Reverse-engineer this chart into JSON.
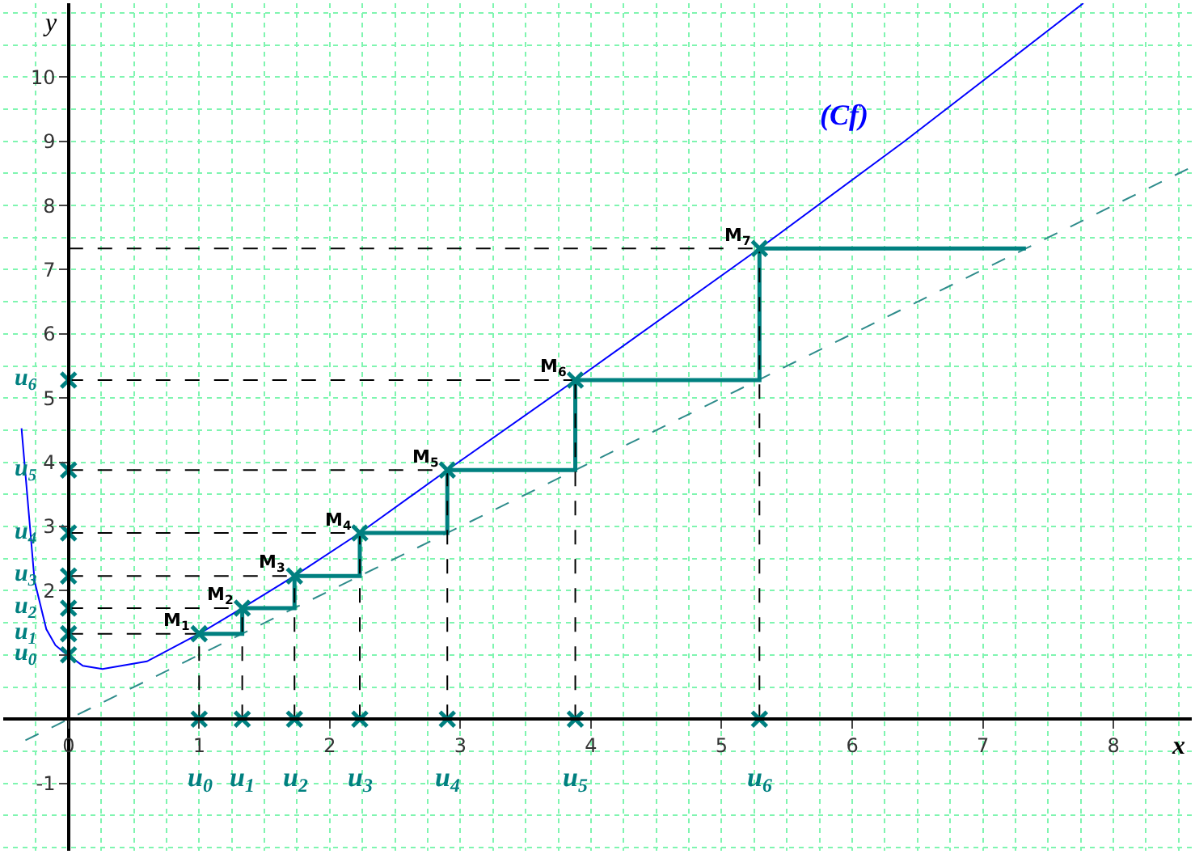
{
  "chart_data": {
    "type": "line",
    "xlabel": "x",
    "ylabel": "y",
    "xlim": [
      -0.5,
      8.6
    ],
    "ylim": [
      -2.05,
      11.15
    ],
    "xticks": [
      0,
      1,
      2,
      3,
      4,
      5,
      6,
      7,
      8
    ],
    "yticks": [
      -1,
      {
        "value": 1,
        "label": null
      },
      2,
      3,
      4,
      5,
      6,
      7,
      8,
      9,
      10
    ],
    "grid": true,
    "legend": false,
    "series": [
      {
        "name": "(Cf)",
        "color": "#0000ff",
        "line_style": "solid",
        "x": [
          -0.36,
          -0.32,
          -0.26,
          -0.17,
          -0.1,
          -0.04,
          0.11,
          0.26,
          0.6,
          1,
          1.33,
          1.73,
          2.23,
          2.9,
          3.88,
          5.29,
          6.4,
          7.77
        ],
        "values": [
          4.53,
          3.58,
          2.15,
          1.4,
          1.15,
          1.05,
          0.83,
          0.78,
          0.9,
          1.33,
          1.73,
          2.23,
          2.9,
          3.88,
          5.28,
          7.33,
          9.0,
          11.15
        ]
      },
      {
        "color": "#2e8b8b",
        "line_style": "dashed",
        "x": [
          -0.33,
          8.6
        ],
        "values": [
          -0.33,
          8.6
        ]
      },
      {
        "color": "#008080",
        "line_style": "solid",
        "x": [
          1,
          1.33,
          1.33,
          1.73,
          1.73,
          2.23,
          2.23,
          2.9,
          2.9,
          3.88,
          3.88,
          5.29,
          5.29,
          7.33
        ],
        "values": [
          1.33,
          1.33,
          1.73,
          1.73,
          2.23,
          2.23,
          2.9,
          2.9,
          3.88,
          3.88,
          5.28,
          5.28,
          7.33,
          7.33
        ]
      },
      {
        "color": "#000000",
        "line_style": "dashed",
        "x": [
          1,
          1,
          null,
          1.33,
          1.33,
          null,
          1.73,
          1.73,
          null,
          2.23,
          2.23,
          null,
          2.9,
          2.9,
          null,
          3.88,
          3.88,
          null,
          5.29,
          5.29,
          null,
          0,
          1,
          null,
          0,
          1.33,
          null,
          0,
          1.73,
          null,
          0,
          2.23,
          null,
          0,
          2.9,
          null,
          0,
          3.88,
          null,
          0,
          5.29
        ],
        "values": [
          0,
          1.33,
          null,
          0,
          1.73,
          null,
          0,
          2.23,
          null,
          0,
          2.9,
          null,
          0,
          3.88,
          null,
          0,
          5.28,
          null,
          0,
          7.33,
          null,
          1.33,
          1.33,
          null,
          1.73,
          1.73,
          null,
          2.23,
          2.23,
          null,
          2.9,
          2.9,
          null,
          3.88,
          3.88,
          null,
          5.28,
          5.28,
          null,
          7.33,
          7.33
        ]
      },
      {
        "type": "scatter",
        "marker": "cross",
        "color": "#008080",
        "x": [
          1,
          1.33,
          1.73,
          2.23,
          2.9,
          3.88,
          5.29,
          0,
          0,
          0,
          0,
          0,
          0,
          0,
          1,
          1.33,
          1.73,
          2.23,
          2.9,
          3.88,
          5.29
        ],
        "values": [
          0,
          0,
          0,
          0,
          0,
          0,
          0,
          1,
          1.33,
          1.73,
          2.23,
          2.9,
          3.88,
          5.28,
          1.33,
          1.73,
          2.23,
          2.9,
          3.88,
          5.28,
          7.33
        ]
      }
    ],
    "annotations": [
      {
        "text": "M$_{1}$",
        "x": 1,
        "y": 1.33
      },
      {
        "text": "M$_{2}$",
        "x": 1.33,
        "y": 1.73
      },
      {
        "text": "M$_{3}$",
        "x": 1.73,
        "y": 2.23
      },
      {
        "text": "M$_{4}$",
        "x": 2.23,
        "y": 2.9
      },
      {
        "text": "M$_{5}$",
        "x": 2.9,
        "y": 3.88
      },
      {
        "text": "M$_{6}$",
        "x": 3.88,
        "y": 5.28
      },
      {
        "text": "M$_{7}$",
        "x": 5.29,
        "y": 7.33
      },
      {
        "text": "u$_{0}$",
        "x": 1,
        "y": 0
      },
      {
        "text": "u$_{1}$",
        "x": 1.33,
        "y": 0
      },
      {
        "text": "u$_{2}$",
        "x": 1.73,
        "y": 0
      },
      {
        "text": "u$_{3}$",
        "x": 2.23,
        "y": 0
      },
      {
        "text": "u$_{4}$",
        "x": 2.9,
        "y": 0
      },
      {
        "text": "u$_{5}$",
        "x": 3.88,
        "y": 0
      },
      {
        "text": "u$_{6}$",
        "x": 5.29,
        "y": 0
      },
      {
        "text": "u$_{0}$",
        "x": 0,
        "y": 1
      },
      {
        "text": "u$_{1}$",
        "x": 0,
        "y": 1.33
      },
      {
        "text": "u$_{2}$",
        "x": 0,
        "y": 1.73
      },
      {
        "text": "u$_{3}$",
        "x": 0,
        "y": 2.23
      },
      {
        "text": "u$_{4}$",
        "x": 0,
        "y": 2.9
      },
      {
        "text": "u$_{5}$",
        "x": 0,
        "y": 3.88
      },
      {
        "text": "u$_{6}$",
        "x": 0,
        "y": 5.28
      }
    ]
  }
}
